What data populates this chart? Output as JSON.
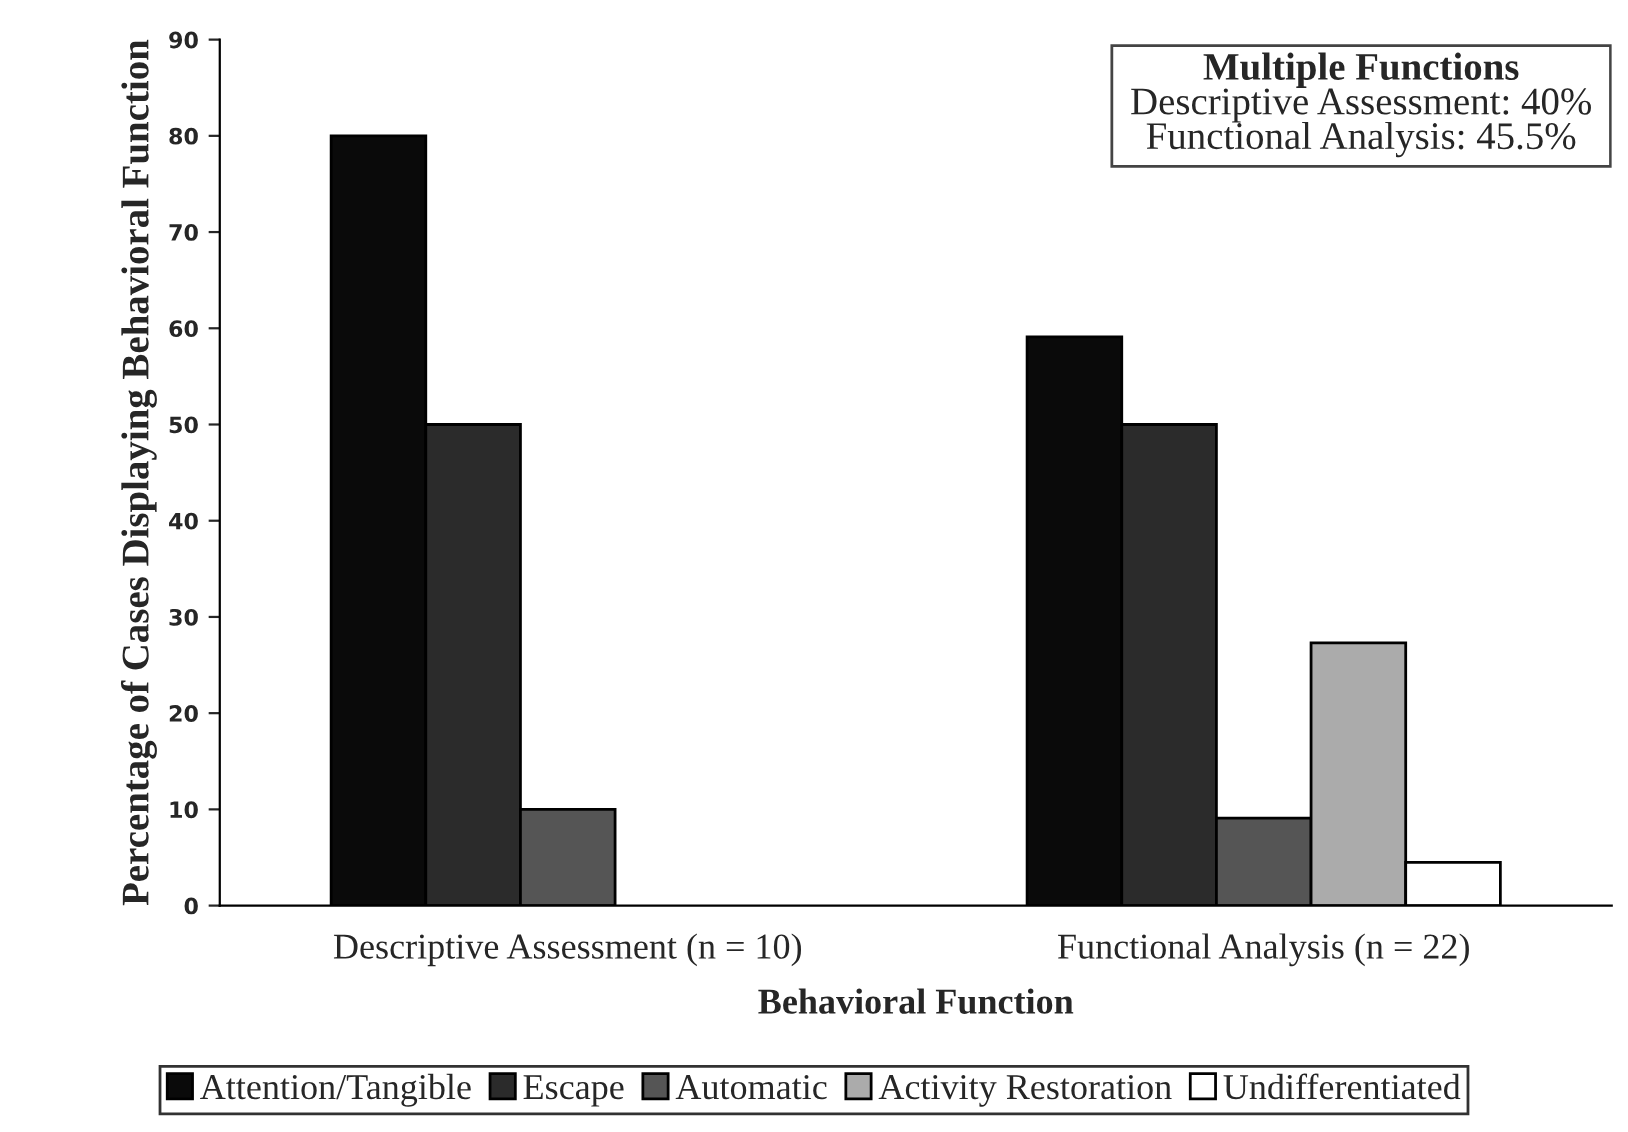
{
  "chart_data": {
    "type": "bar",
    "categories": [
      "Descriptive Assessment (n = 10)",
      "Functional Analysis (n = 22)"
    ],
    "series": [
      {
        "name": "Attention/Tangible",
        "color": "#0a0a0a",
        "values": [
          80,
          59.1
        ]
      },
      {
        "name": "Escape",
        "color": "#2b2b2b",
        "values": [
          50,
          50
        ]
      },
      {
        "name": "Automatic",
        "color": "#555555",
        "values": [
          10,
          9.1
        ]
      },
      {
        "name": "Activity Restoration",
        "color": "#ababab",
        "values": [
          0,
          27.3
        ]
      },
      {
        "name": "Undifferentiated",
        "color": "#ffffff",
        "values": [
          0,
          4.5
        ]
      }
    ],
    "xlabel": "Behavioral Function",
    "ylabel": "Percentage of Cases Displaying Behavioral Function",
    "ylim": [
      0,
      90
    ],
    "yticks": [
      0,
      10,
      20,
      30,
      40,
      50,
      60,
      70,
      80,
      90
    ],
    "annotations": [
      "Multiple Functions",
      "Descriptive Assessment: 40%",
      "Functional Analysis: 45.5%"
    ],
    "grid": false,
    "legend": "bottom"
  }
}
